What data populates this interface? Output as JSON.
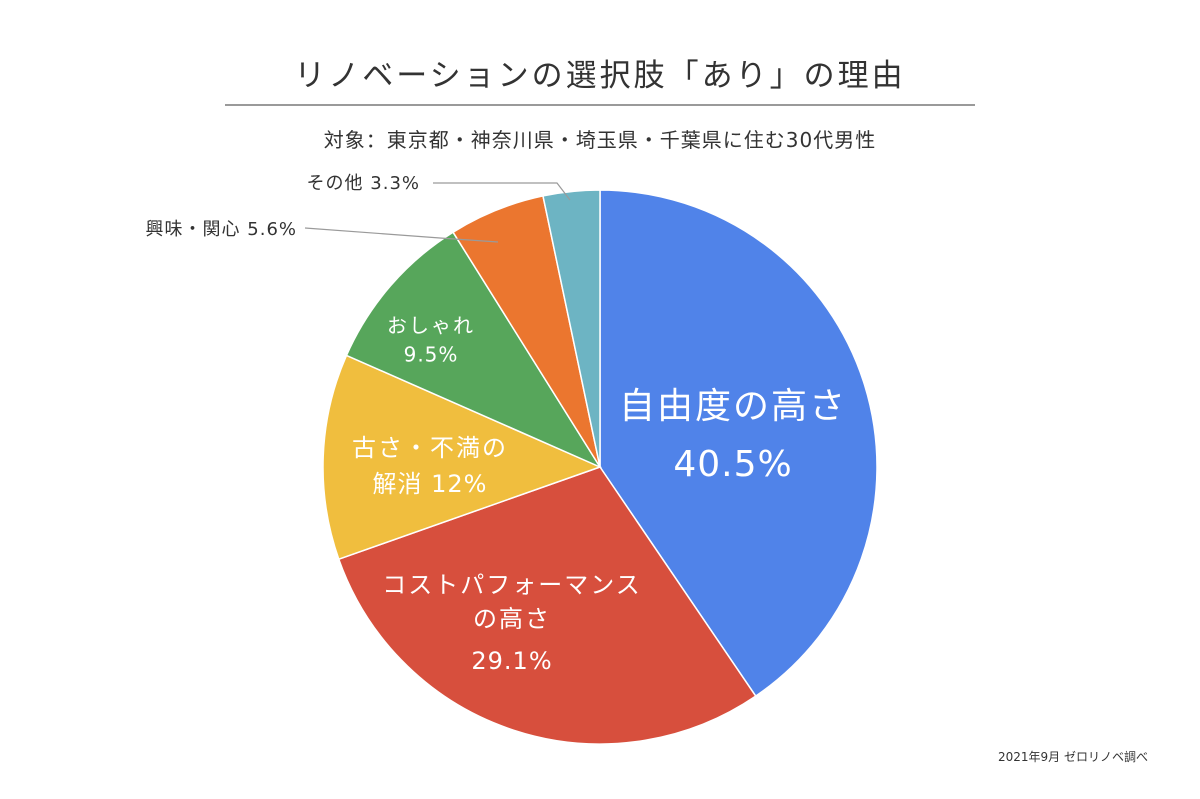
{
  "chart_data": {
    "type": "pie",
    "title": "リノベーションの選択肢「あり」の理由",
    "subtitle": "対象：東京都・神奈川県・埼玉県・千葉県に住む30代男性",
    "source": "2021年9月 ゼロリノベ調べ",
    "slices": [
      {
        "label": "自由度の高さ",
        "label_lines": [
          "自由度の高さ"
        ],
        "value": 40.5,
        "value_label": "40.5%",
        "color": "#5083E9"
      },
      {
        "label": "コストパフォーマンスの高さ",
        "label_lines": [
          "コストパフォーマンス",
          "の高さ"
        ],
        "value": 29.1,
        "value_label": "29.1%",
        "color": "#D74F3D"
      },
      {
        "label": "古さ・不満の解消",
        "label_lines": [
          "古さ・不満の"
        ],
        "value": 12,
        "value_label": "解消 12%",
        "color": "#F0BE3E"
      },
      {
        "label": "おしゃれ",
        "label_lines": [
          "おしゃれ"
        ],
        "value": 9.5,
        "value_label": "9.5%",
        "color": "#57A65B"
      },
      {
        "label": "興味・関心",
        "label_lines": [],
        "value": 5.6,
        "value_label": "",
        "outside_label": "興味・関心 5.6%",
        "color": "#EB762F"
      },
      {
        "label": "その他",
        "label_lines": [],
        "value": 3.3,
        "value_label": "",
        "outside_label": "その他 3.3%",
        "color": "#6DB4C3"
      }
    ]
  }
}
